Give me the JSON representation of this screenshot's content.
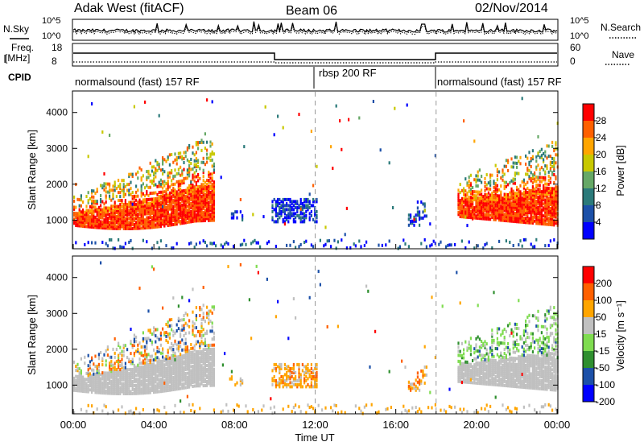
{
  "header": {
    "title": "Adak West (fitACF)",
    "beam": "Beam 06",
    "date": "02/Nov/2014"
  },
  "left_labels": {
    "nsky": "N.Sky",
    "freq": "Freq.",
    "freq_unit": "[MHz]",
    "cpid": "CPID"
  },
  "right_labels": {
    "nsearch": "N.Search",
    "nave": "Nave"
  },
  "noise_axis": {
    "left_top": "10^5",
    "left_bottom": "10^0",
    "right_top": "10^5",
    "right_bottom": "10^0"
  },
  "freq_axis": {
    "left_top": "18",
    "left_bottom": "8",
    "right_top": "60",
    "right_bottom": "0"
  },
  "cpid_segments": [
    {
      "label": "normalsound (fast) 157 RF",
      "start_hour": 0
    },
    {
      "label": "rbsp 200 RF",
      "start_hour": 12
    },
    {
      "label": "normalsound (fast) 157 RF",
      "start_hour": 18
    }
  ],
  "x_axis": {
    "label": "Time UT",
    "ticks": [
      "00:00",
      "04:00",
      "08:00",
      "12:00",
      "16:00",
      "20:00",
      "00:00"
    ]
  },
  "colors": {
    "power": [
      "#0000ff",
      "#1c50a8",
      "#2b7a7a",
      "#66a866",
      "#c8c800",
      "#ffa500",
      "#ff6000",
      "#ff0000"
    ],
    "velocity": [
      "#ff0000",
      "#ff6000",
      "#ffa500",
      "#c0c0c0",
      "#7fdc50",
      "#2f8f2f",
      "#1c50a8",
      "#0000ff"
    ]
  },
  "chart_data": [
    {
      "type": "heatmap",
      "panel": "power",
      "ylabel": "Slant Range [km]",
      "yticks": [
        "1000",
        "2000",
        "3000",
        "4000"
      ],
      "ylim": [
        200,
        4600
      ],
      "xlim": [
        0,
        24
      ],
      "colorbar_label": "Power [dB]",
      "colorbar_ticks": [
        "4",
        "8",
        "12",
        "16",
        "20",
        "24",
        "28"
      ]
    },
    {
      "type": "heatmap",
      "panel": "velocity",
      "ylabel": "Slant Range [km]",
      "yticks": [
        "1000",
        "2000",
        "3000",
        "4000"
      ],
      "ylim": [
        200,
        4600
      ],
      "xlim": [
        0,
        24
      ],
      "colorbar_label": "Velocity [m s⁻¹]",
      "colorbar_ticks": [
        "200",
        "100",
        "50",
        "15",
        "-15",
        "-50",
        "-100",
        "-200"
      ]
    }
  ]
}
